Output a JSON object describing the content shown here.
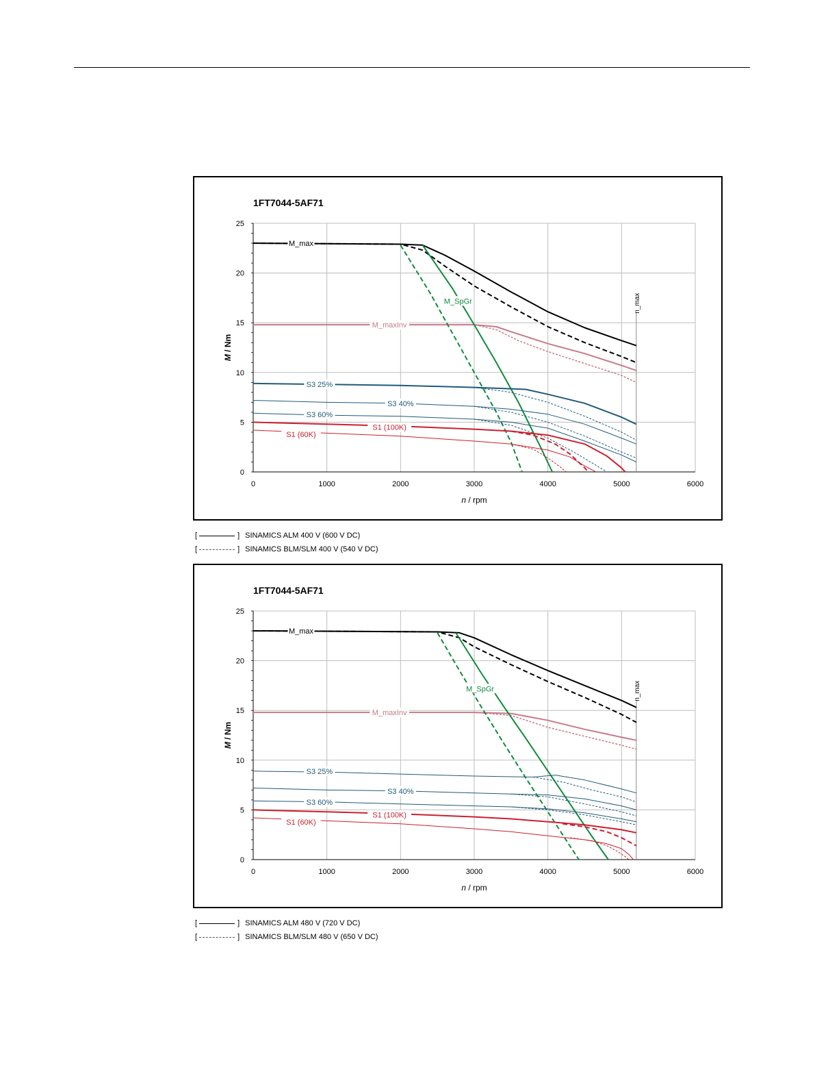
{
  "chart_data": [
    {
      "type": "line",
      "title": "1FT7044-5AF71",
      "xlabel_italic": "n",
      "xlabel_unit": " / rpm",
      "ylabel_italic": "M",
      "ylabel_unit": " / Nm",
      "xlim": [
        0,
        6000
      ],
      "ylim": [
        0,
        25
      ],
      "xticks": [
        0,
        1000,
        2000,
        3000,
        4000,
        5000,
        6000
      ],
      "yticks": [
        0,
        5,
        10,
        15,
        20,
        25
      ],
      "grid": true,
      "nmax": {
        "label": "n_max",
        "x": 5200
      },
      "labels": [
        {
          "text": "M_max",
          "x": 650,
          "y": 23,
          "color": "#000000"
        },
        {
          "text": "M_SpGr",
          "x": 2780,
          "y": 17.2,
          "color": "#0f8a3c"
        },
        {
          "text": "M_maxInv",
          "x": 1850,
          "y": 14.8,
          "color": "#c77a89"
        },
        {
          "text": "S3 25%",
          "x": 900,
          "y": 8.8,
          "color": "#1f5a78"
        },
        {
          "text": "S3 40%",
          "x": 2000,
          "y": 6.9,
          "color": "#1f5a78"
        },
        {
          "text": "S3 60%",
          "x": 900,
          "y": 5.8,
          "color": "#1f5a78"
        },
        {
          "text": "S1 (100K)",
          "x": 1850,
          "y": 4.5,
          "color": "#cc1f2f"
        },
        {
          "text": "S1 (60K)",
          "x": 650,
          "y": 3.8,
          "color": "#cc1f2f"
        }
      ],
      "series": [
        {
          "color": "#000000",
          "width": 2,
          "dash": false,
          "x": [
            0,
            2000,
            2300,
            2600,
            3000,
            3500,
            4000,
            4500,
            5000,
            5200
          ],
          "y": [
            23,
            22.9,
            22.8,
            21.8,
            20.2,
            18.1,
            16.1,
            14.5,
            13.2,
            12.7
          ]
        },
        {
          "color": "#000000",
          "width": 2,
          "dash": true,
          "x": [
            0,
            2000,
            2300,
            2600,
            3000,
            3500,
            4000,
            4500,
            5000,
            5200
          ],
          "y": [
            23,
            22.9,
            22.3,
            20.7,
            18.7,
            16.6,
            14.6,
            13,
            11.6,
            11
          ]
        },
        {
          "color": "#c77a89",
          "width": 2,
          "dash": false,
          "x": [
            0,
            3000,
            3300,
            3500,
            4000,
            4500,
            5000,
            5200
          ],
          "y": [
            14.8,
            14.8,
            14.6,
            14.1,
            12.9,
            11.9,
            10.7,
            10.2
          ]
        },
        {
          "color": "#c77a89",
          "width": 1.5,
          "dash": true,
          "x": [
            0,
            3000,
            3300,
            3600,
            4000,
            4500,
            5000,
            5200
          ],
          "y": [
            14.8,
            14.8,
            14.3,
            13.2,
            12.1,
            10.9,
            9.7,
            9
          ]
        },
        {
          "color": "#0f8a3c",
          "width": 2,
          "dash": false,
          "x": [
            2300,
            2700,
            3000,
            3300,
            3600,
            3900,
            4060
          ],
          "y": [
            22.8,
            18.5,
            14.8,
            11,
            7,
            2.5,
            0
          ]
        },
        {
          "color": "#0f8a3c",
          "width": 2,
          "dash": true,
          "x": [
            2000,
            2400,
            2700,
            3000,
            3300,
            3500,
            3650
          ],
          "y": [
            22.8,
            18,
            14,
            10,
            6,
            3,
            0
          ]
        },
        {
          "color": "#1f5a78",
          "width": 2,
          "dash": false,
          "x": [
            0,
            1000,
            2000,
            3000,
            3700,
            4000,
            4500,
            5000,
            5200
          ],
          "y": [
            8.9,
            8.8,
            8.7,
            8.5,
            8.3,
            7.8,
            6.9,
            5.5,
            4.8
          ]
        },
        {
          "color": "#1f5a78",
          "width": 1,
          "dash": true,
          "x": [
            3000,
            3500,
            4000,
            4500,
            5000,
            5200
          ],
          "y": [
            8.5,
            8.0,
            7.0,
            5.6,
            4.0,
            3.2
          ]
        },
        {
          "color": "#1f5a78",
          "width": 1,
          "dash": false,
          "x": [
            0,
            1000,
            2000,
            3000,
            3500,
            4000,
            4500,
            5000,
            5200
          ],
          "y": [
            7.2,
            7.0,
            6.9,
            6.6,
            6.3,
            5.8,
            4.8,
            3.4,
            2.8
          ]
        },
        {
          "color": "#1f5a78",
          "width": 1,
          "dash": true,
          "x": [
            3000,
            3500,
            4000,
            4500,
            5000,
            5200
          ],
          "y": [
            6.6,
            6.0,
            5.0,
            3.6,
            2.0,
            1.4
          ]
        },
        {
          "color": "#1f5a78",
          "width": 1,
          "dash": false,
          "x": [
            0,
            1000,
            2000,
            3000,
            3500,
            4000,
            4500,
            5000,
            5200
          ],
          "y": [
            5.9,
            5.7,
            5.6,
            5.3,
            5.0,
            4.4,
            3.1,
            1.7,
            1.0
          ]
        },
        {
          "color": "#1f5a78",
          "width": 1,
          "dash": true,
          "x": [
            3000,
            3500,
            4000,
            4400,
            4800
          ],
          "y": [
            5.3,
            4.7,
            3.4,
            1.8,
            0
          ]
        },
        {
          "color": "#cc1f2f",
          "width": 2,
          "dash": false,
          "x": [
            0,
            1000,
            2000,
            3000,
            3500,
            4000,
            4500,
            4800,
            5000,
            5050
          ],
          "y": [
            5.0,
            4.8,
            4.6,
            4.3,
            4.1,
            3.7,
            2.8,
            1.6,
            0.4,
            0
          ]
        },
        {
          "color": "#cc1f2f",
          "width": 2,
          "dash": true,
          "x": [
            3500,
            3800,
            4100,
            4300,
            4500,
            4550
          ],
          "y": [
            4.1,
            3.7,
            2.8,
            1.8,
            0.4,
            0
          ]
        },
        {
          "color": "#cc1f2f",
          "width": 1,
          "dash": false,
          "x": [
            0,
            1000,
            2000,
            3000,
            3500,
            4000,
            4300,
            4500,
            4600,
            4650
          ],
          "y": [
            4.2,
            3.9,
            3.6,
            3.1,
            2.8,
            2.2,
            1.5,
            0.6,
            0.2,
            0
          ]
        },
        {
          "color": "#cc1f2f",
          "width": 1,
          "dash": true,
          "x": [
            3500,
            3800,
            4000,
            4150,
            4250
          ],
          "y": [
            2.8,
            2.3,
            1.4,
            0.6,
            0
          ]
        }
      ],
      "legend": [
        {
          "bracket_open": "[",
          "bracket_close": "]",
          "style": "solid",
          "text": "SINAMICS ALM 400 V (600 V DC)"
        },
        {
          "bracket_open": "[",
          "bracket_close": "]",
          "style": "dashed",
          "text": "SINAMICS BLM/SLM 400 V (540 V DC)"
        }
      ]
    },
    {
      "type": "line",
      "title": "1FT7044-5AF71",
      "xlabel_italic": "n",
      "xlabel_unit": " / rpm",
      "ylabel_italic": "M",
      "ylabel_unit": " / Nm",
      "xlim": [
        0,
        6000
      ],
      "ylim": [
        0,
        25
      ],
      "xticks": [
        0,
        1000,
        2000,
        3000,
        4000,
        5000,
        6000
      ],
      "yticks": [
        0,
        5,
        10,
        15,
        20,
        25
      ],
      "grid": true,
      "nmax": {
        "label": "n_max",
        "x": 5200
      },
      "labels": [
        {
          "text": "M_max",
          "x": 650,
          "y": 23,
          "color": "#000000"
        },
        {
          "text": "M_SpGr",
          "x": 3080,
          "y": 17.2,
          "color": "#0f8a3c"
        },
        {
          "text": "M_maxInv",
          "x": 1850,
          "y": 14.8,
          "color": "#c77a89"
        },
        {
          "text": "S3 25%",
          "x": 900,
          "y": 8.9,
          "color": "#1f5a78"
        },
        {
          "text": "S3 40%",
          "x": 2000,
          "y": 6.9,
          "color": "#1f5a78"
        },
        {
          "text": "S3 60%",
          "x": 900,
          "y": 5.8,
          "color": "#1f5a78"
        },
        {
          "text": "S1 (100K)",
          "x": 1850,
          "y": 4.5,
          "color": "#cc1f2f"
        },
        {
          "text": "S1 (60K)",
          "x": 650,
          "y": 3.8,
          "color": "#cc1f2f"
        }
      ],
      "series": [
        {
          "color": "#000000",
          "width": 2,
          "dash": false,
          "x": [
            0,
            2500,
            2800,
            3000,
            3500,
            4000,
            4500,
            5000,
            5200
          ],
          "y": [
            23,
            22.9,
            22.8,
            22.3,
            20.6,
            19,
            17.5,
            16.0,
            15.3
          ]
        },
        {
          "color": "#000000",
          "width": 2,
          "dash": true,
          "x": [
            0,
            2500,
            2800,
            3000,
            3500,
            4000,
            4500,
            5000,
            5200
          ],
          "y": [
            23,
            22.9,
            22.3,
            21.4,
            19.6,
            17.9,
            16.3,
            14.6,
            13.8
          ]
        },
        {
          "color": "#c77a89",
          "width": 2,
          "dash": false,
          "x": [
            0,
            3000,
            3500,
            4000,
            4500,
            5000,
            5200
          ],
          "y": [
            14.8,
            14.8,
            14.7,
            14.0,
            13.1,
            12.3,
            12.0
          ]
        },
        {
          "color": "#c77a89",
          "width": 1.5,
          "dash": true,
          "x": [
            0,
            3000,
            3500,
            4000,
            4500,
            5000,
            5200
          ],
          "y": [
            14.8,
            14.8,
            14.5,
            13.3,
            12.4,
            11.5,
            11.1
          ]
        },
        {
          "color": "#0f8a3c",
          "width": 2,
          "dash": false,
          "x": [
            2750,
            3100,
            3400,
            3700,
            4000,
            4300,
            4600,
            4820
          ],
          "y": [
            22.8,
            18.7,
            15.4,
            12.2,
            8.9,
            5.6,
            2.3,
            0
          ]
        },
        {
          "color": "#0f8a3c",
          "width": 2,
          "dash": true,
          "x": [
            2500,
            2800,
            3100,
            3400,
            3700,
            4000,
            4200,
            4420
          ],
          "y": [
            22.8,
            19.0,
            15.3,
            11.7,
            8.2,
            4.8,
            2.5,
            0
          ]
        },
        {
          "color": "#1f5a78",
          "width": 1,
          "dash": false,
          "x": [
            0,
            1000,
            2000,
            3000,
            3800,
            4100,
            4500,
            5000,
            5200
          ],
          "y": [
            8.9,
            8.8,
            8.6,
            8.4,
            8.3,
            8.5,
            8.0,
            7.1,
            6.7
          ]
        },
        {
          "color": "#1f5a78",
          "width": 1,
          "dash": true,
          "x": [
            3800,
            4200,
            4600,
            5000,
            5200
          ],
          "y": [
            8.3,
            7.8,
            7.0,
            6.3,
            5.8
          ]
        },
        {
          "color": "#1f5a78",
          "width": 1,
          "dash": false,
          "x": [
            0,
            1000,
            2000,
            3000,
            3500,
            4000,
            4500,
            5000,
            5200
          ],
          "y": [
            7.2,
            7.0,
            6.9,
            6.7,
            6.6,
            6.5,
            6.1,
            5.4,
            5.0
          ]
        },
        {
          "color": "#1f5a78",
          "width": 1,
          "dash": true,
          "x": [
            3500,
            4000,
            4500,
            5000,
            5200
          ],
          "y": [
            6.6,
            6.3,
            5.6,
            4.8,
            4.4
          ]
        },
        {
          "color": "#1f5a78",
          "width": 1,
          "dash": false,
          "x": [
            0,
            1000,
            2000,
            3000,
            3500,
            4000,
            4500,
            5000,
            5200
          ],
          "y": [
            5.9,
            5.8,
            5.6,
            5.4,
            5.3,
            5.1,
            4.7,
            4.1,
            3.8
          ]
        },
        {
          "color": "#1f5a78",
          "width": 1,
          "dash": true,
          "x": [
            3500,
            4000,
            4500,
            5000,
            5200
          ],
          "y": [
            5.3,
            5.0,
            4.5,
            3.8,
            3.5
          ]
        },
        {
          "color": "#cc1f2f",
          "width": 2,
          "dash": false,
          "x": [
            0,
            1000,
            2000,
            3000,
            3500,
            4000,
            4500,
            5000,
            5200
          ],
          "y": [
            5.0,
            4.8,
            4.6,
            4.3,
            4.1,
            3.8,
            3.5,
            3.0,
            2.7
          ]
        },
        {
          "color": "#cc1f2f",
          "width": 2,
          "dash": true,
          "x": [
            4200,
            4500,
            4800,
            5000,
            5200
          ],
          "y": [
            3.6,
            3.3,
            2.8,
            2.2,
            1.4
          ]
        },
        {
          "color": "#cc1f2f",
          "width": 1,
          "dash": false,
          "x": [
            0,
            1000,
            2000,
            3000,
            3500,
            4000,
            4500,
            4800,
            5000,
            5100,
            5160
          ],
          "y": [
            4.2,
            3.9,
            3.6,
            3.1,
            2.8,
            2.4,
            2.0,
            1.6,
            1.1,
            0.5,
            0
          ]
        },
        {
          "color": "#cc1f2f",
          "width": 1,
          "dash": true,
          "x": [
            4300,
            4600,
            4800,
            4950,
            5050,
            5100
          ],
          "y": [
            2.2,
            1.9,
            1.4,
            0.8,
            0.3,
            0
          ]
        }
      ],
      "legend": [
        {
          "bracket_open": "[",
          "bracket_close": "]",
          "style": "solid",
          "text": "SINAMICS ALM 480 V (720 V DC)"
        },
        {
          "bracket_open": "[",
          "bracket_close": "]",
          "style": "dashed",
          "text": "SINAMICS BLM/SLM 480 V (650 V DC)"
        }
      ]
    }
  ]
}
